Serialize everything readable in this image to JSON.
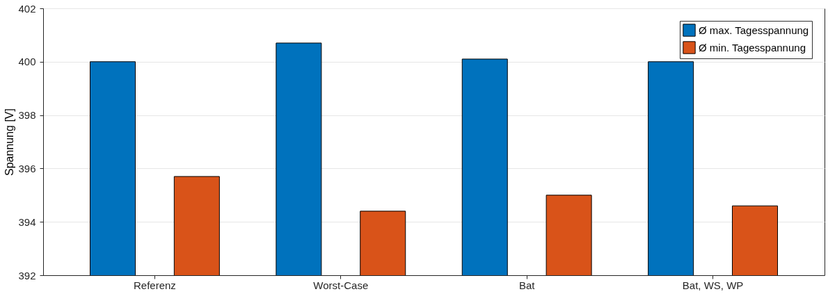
{
  "chart_data": {
    "type": "bar",
    "ylabel": "Spannung [V]",
    "categories": [
      "Referenz",
      "Worst-Case",
      "Bat",
      "Bat, WS, WP"
    ],
    "series": [
      {
        "name": "Ø max. Tagesspannung",
        "color": "#0072bd",
        "values": [
          400.0,
          400.7,
          400.1,
          400.0
        ]
      },
      {
        "name": "Ø min. Tagesspannung",
        "color": "#d95319",
        "values": [
          395.7,
          394.4,
          395.0,
          394.6
        ]
      }
    ],
    "ylim": [
      392,
      402
    ],
    "yticks": [
      392,
      394,
      396,
      398,
      400,
      402
    ],
    "grid": "y",
    "legend": "top right"
  }
}
